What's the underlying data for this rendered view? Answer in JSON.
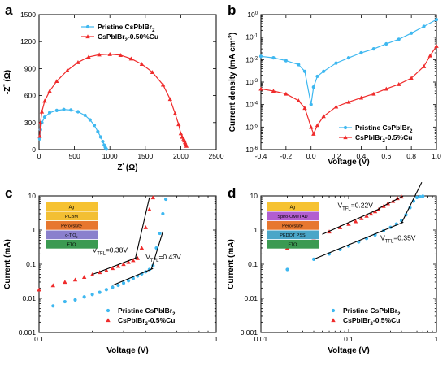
{
  "colors": {
    "pristine": "#3fb8f0",
    "doped": "#ef2b2b",
    "fit": "#000000"
  },
  "chart_data": [
    {
      "id": "a",
      "type": "scatter",
      "panel_label": "a",
      "xlabel_main": "Z",
      "xlabel_sup": "'",
      "xlabel_unit": "(Ω)",
      "ylabel_main": "-Z",
      "ylabel_sup": "''",
      "ylabel_unit": "(Ω)",
      "xlim": [
        0,
        2500
      ],
      "ylim": [
        0,
        1500
      ],
      "xticks": [
        0,
        500,
        1000,
        1500,
        2000,
        2500
      ],
      "yticks": [
        0,
        300,
        600,
        900,
        1200,
        1500
      ],
      "legend_position": "top-right",
      "series": [
        {
          "name": "Pristine CsPbIBr",
          "name_sub": "2",
          "name_suffix": "",
          "color": "#3fb8f0",
          "marker": "circle",
          "x": [
            10,
            20,
            40,
            80,
            150,
            250,
            350,
            450,
            550,
            650,
            720,
            780,
            830,
            870,
            900,
            920,
            935,
            945,
            950
          ],
          "y": [
            120,
            220,
            300,
            360,
            410,
            435,
            445,
            440,
            420,
            380,
            330,
            270,
            200,
            140,
            90,
            50,
            25,
            10,
            5
          ]
        },
        {
          "name": "CsPbIBr",
          "name_sub": "2",
          "name_suffix": "-0.50%Cu",
          "color": "#ef2b2b",
          "marker": "triangle",
          "x": [
            10,
            20,
            40,
            80,
            150,
            250,
            400,
            550,
            700,
            850,
            1000,
            1150,
            1300,
            1450,
            1600,
            1750,
            1850,
            1920,
            1970,
            2000,
            2020,
            2040,
            2050,
            2060,
            2070,
            2080
          ],
          "y": [
            150,
            300,
            420,
            540,
            650,
            760,
            880,
            970,
            1030,
            1055,
            1060,
            1050,
            1010,
            950,
            860,
            720,
            560,
            400,
            280,
            180,
            140,
            120,
            100,
            80,
            60,
            40
          ]
        }
      ]
    },
    {
      "id": "b",
      "type": "line",
      "panel_label": "b",
      "xlabel": "Voltage (V)",
      "ylabel_main": "Current density (mA cm",
      "ylabel_sup": "-2",
      "ylabel_end": ")",
      "xlim": [
        -0.4,
        1.0
      ],
      "ylim_log": [
        -6,
        0
      ],
      "xticks": [
        -0.4,
        -0.2,
        0.0,
        0.2,
        0.4,
        0.6,
        0.8,
        1.0
      ],
      "xticklabels": [
        "-0.4",
        "-0.2",
        "0.0",
        "0.2",
        "0.4",
        "0.6",
        "0.8",
        "1.0"
      ],
      "yticks_exp": [
        -6,
        -5,
        -4,
        -3,
        -2,
        -1,
        0
      ],
      "legend_position": "bottom-right",
      "series": [
        {
          "name": "Pristine CsPbIBr",
          "name_sub": "2",
          "name_suffix": "",
          "color": "#3fb8f0",
          "marker": "circle",
          "x": [
            -0.4,
            -0.3,
            -0.2,
            -0.1,
            -0.05,
            0.0,
            0.02,
            0.05,
            0.1,
            0.2,
            0.3,
            0.4,
            0.5,
            0.6,
            0.7,
            0.8,
            0.9,
            1.0
          ],
          "y": [
            0.014,
            0.012,
            0.009,
            0.006,
            0.003,
            0.0001,
            0.0006,
            0.0018,
            0.003,
            0.007,
            0.012,
            0.02,
            0.03,
            0.05,
            0.08,
            0.15,
            0.3,
            0.6
          ]
        },
        {
          "name": "CsPbIBr",
          "name_sub": "2",
          "name_suffix": "-0.5%Cu",
          "color": "#ef2b2b",
          "marker": "triangle",
          "x": [
            -0.4,
            -0.3,
            -0.2,
            -0.1,
            -0.05,
            0.0,
            0.02,
            0.05,
            0.1,
            0.2,
            0.3,
            0.4,
            0.5,
            0.6,
            0.7,
            0.8,
            0.9,
            0.95,
            1.0
          ],
          "y": [
            0.0005,
            0.0004,
            0.0003,
            0.00015,
            7e-05,
            1e-05,
            5e-06,
            1.2e-05,
            3e-05,
            8e-05,
            0.00013,
            0.0002,
            0.0003,
            0.0005,
            0.0008,
            0.0015,
            0.005,
            0.015,
            0.04
          ]
        }
      ]
    },
    {
      "id": "c",
      "type": "scatter",
      "panel_label": "c",
      "xlabel": "Voltage (V)",
      "ylabel": "Current (mA)",
      "xlim_log": [
        -1,
        0
      ],
      "ylim_log": [
        -3,
        1
      ],
      "xticks": [
        0.1,
        1
      ],
      "xticklabels": [
        "0.1",
        "1"
      ],
      "yticks": [
        0.001,
        0.01,
        0.1,
        1,
        10
      ],
      "yticklabels": [
        "0.001",
        "0.01",
        "0.1",
        "1",
        "10"
      ],
      "legend_position": "bottom-right",
      "device_layers": [
        {
          "label": "Ag",
          "label_sub": "",
          "color": "#f6c232"
        },
        {
          "label": "PCBM",
          "label_sub": "",
          "color": "#f3bf33"
        },
        {
          "label": "Perovskite",
          "label_sub": "",
          "color": "#e7772f"
        },
        {
          "label": "c-TiO",
          "label_sub": "2",
          "color": "#8a80cd"
        },
        {
          "label": "FTO",
          "label_sub": "",
          "color": "#3b9a52"
        }
      ],
      "annotations": [
        {
          "text": "V",
          "sub": "TFL",
          "value": "=0.38V",
          "x": 0.2,
          "y": 0.22
        },
        {
          "text": "V",
          "sub": "TFL",
          "value": "=0.43V",
          "x": 0.4,
          "y": 0.14
        }
      ],
      "series": [
        {
          "name": "Pristine CsPbIBr",
          "name_sub": "2",
          "name_suffix": "",
          "color": "#3fb8f0",
          "marker": "circle",
          "x": [
            0.12,
            0.14,
            0.16,
            0.18,
            0.2,
            0.22,
            0.24,
            0.26,
            0.28,
            0.3,
            0.32,
            0.34,
            0.36,
            0.38,
            0.4,
            0.42,
            0.44,
            0.46,
            0.48,
            0.5,
            0.52
          ],
          "y": [
            0.006,
            0.008,
            0.009,
            0.011,
            0.013,
            0.015,
            0.018,
            0.021,
            0.024,
            0.028,
            0.033,
            0.038,
            0.045,
            0.052,
            0.06,
            0.07,
            0.09,
            0.3,
            0.8,
            3,
            8
          ]
        },
        {
          "name": "CsPbIBr",
          "name_sub": "2",
          "name_suffix": "-0.5%Cu",
          "color": "#ef2b2b",
          "marker": "triangle",
          "x": [
            0.1,
            0.12,
            0.14,
            0.16,
            0.18,
            0.2,
            0.22,
            0.24,
            0.26,
            0.28,
            0.3,
            0.32,
            0.34,
            0.36,
            0.38,
            0.4,
            0.42,
            0.44
          ],
          "y": [
            0.018,
            0.024,
            0.03,
            0.035,
            0.042,
            0.05,
            0.058,
            0.066,
            0.076,
            0.088,
            0.1,
            0.115,
            0.13,
            0.15,
            0.3,
            1.2,
            4,
            9
          ]
        }
      ],
      "fit_lines": [
        {
          "x": [
            0.2,
            0.36
          ],
          "y": [
            0.05,
            0.16
          ]
        },
        {
          "x": [
            0.35,
            0.42
          ],
          "y": [
            0.15,
            9
          ]
        },
        {
          "x": [
            0.26,
            0.44
          ],
          "y": [
            0.024,
            0.075
          ]
        },
        {
          "x": [
            0.43,
            0.5
          ],
          "y": [
            0.07,
            0.9
          ]
        }
      ]
    },
    {
      "id": "d",
      "type": "scatter",
      "panel_label": "d",
      "xlabel": "Voltage (V)",
      "ylabel": "Current (mA)",
      "xlim_log": [
        -2,
        0
      ],
      "ylim_log": [
        -3,
        1
      ],
      "xticks": [
        0.01,
        0.1,
        1
      ],
      "xticklabels": [
        "0.01",
        "0.1",
        "1"
      ],
      "yticks": [
        0.001,
        0.01,
        0.1,
        1,
        10
      ],
      "yticklabels": [
        "0.001",
        "0.01",
        "0.1",
        "1",
        "10"
      ],
      "legend_position": "bottom-right",
      "device_layers": [
        {
          "label": "Ag",
          "label_sub": "",
          "color": "#f6c232"
        },
        {
          "label": "Spiro-OMeTAD",
          "label_sub": "",
          "color": "#b25ed0"
        },
        {
          "label": "Perovskite",
          "label_sub": "",
          "color": "#e7772f"
        },
        {
          "label": "PEDOT PSS",
          "label_sub": "",
          "color": "#4aa6c8"
        },
        {
          "label": "FTO",
          "label_sub": "",
          "color": "#3b9a52"
        }
      ],
      "annotations": [
        {
          "text": "V",
          "sub": "TFL",
          "value": "=0.22V",
          "x": 0.075,
          "y": 4.5
        },
        {
          "text": "V",
          "sub": "TFL",
          "value": "=0.35V",
          "x": 0.23,
          "y": 0.5
        }
      ],
      "series": [
        {
          "name": "Pristine CsPbIBr",
          "name_sub": "2",
          "name_suffix": "",
          "color": "#3fb8f0",
          "marker": "circle",
          "x": [
            0.02,
            0.04,
            0.06,
            0.08,
            0.1,
            0.13,
            0.16,
            0.2,
            0.25,
            0.3,
            0.35,
            0.4,
            0.45,
            0.5,
            0.55,
            0.6,
            0.65,
            0.7
          ],
          "y": [
            0.07,
            0.14,
            0.2,
            0.27,
            0.34,
            0.45,
            0.57,
            0.72,
            0.95,
            1.2,
            1.5,
            1.9,
            2.8,
            4.5,
            7,
            9,
            9.5,
            9.8
          ]
        },
        {
          "name": "CsPbIBr",
          "name_sub": "2",
          "name_suffix": "-0.5%Cu",
          "color": "#ef2b2b",
          "marker": "triangle",
          "x": [
            0.02,
            0.04,
            0.06,
            0.08,
            0.1,
            0.12,
            0.14,
            0.16,
            0.18,
            0.2,
            0.22,
            0.25,
            0.28,
            0.32,
            0.36,
            0.4
          ],
          "y": [
            0.3,
            0.6,
            0.9,
            1.2,
            1.5,
            1.8,
            2.2,
            2.6,
            3.0,
            3.5,
            4.0,
            5.0,
            6.0,
            7.0,
            8.5,
            9.5
          ]
        }
      ],
      "fit_lines": [
        {
          "x": [
            0.05,
            0.23
          ],
          "y": [
            0.75,
            4.3
          ]
        },
        {
          "x": [
            0.22,
            0.42
          ],
          "y": [
            4.3,
            10
          ]
        },
        {
          "x": [
            0.04,
            0.42
          ],
          "y": [
            0.14,
            1.7
          ]
        },
        {
          "x": [
            0.4,
            0.68
          ],
          "y": [
            1.6,
            25
          ]
        }
      ]
    }
  ]
}
